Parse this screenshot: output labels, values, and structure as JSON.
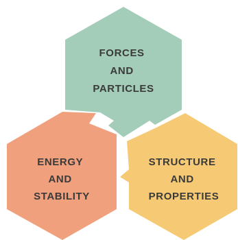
{
  "diagram": {
    "type": "hexagon-cluster",
    "hexagons": [
      {
        "id": "forces-and-particles",
        "color": "#a3cdb9",
        "lines": [
          "FORCES",
          "AND",
          "PARTICLES"
        ]
      },
      {
        "id": "energy-and-stability",
        "color": "#f0a07c",
        "lines": [
          "ENERGY",
          "AND",
          "STABILITY"
        ]
      },
      {
        "id": "structure-and-properties",
        "color": "#f6ca74",
        "lines": [
          "STRUCTURE",
          "AND",
          "PROPERTIES"
        ]
      }
    ]
  }
}
